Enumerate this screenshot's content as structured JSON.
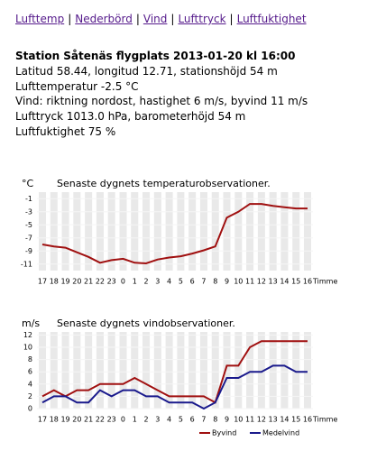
{
  "nav": {
    "links": [
      "Lufttemp",
      "Nederbörd",
      "Vind",
      "Lufttryck",
      "Luftfuktighet"
    ],
    "separator": "|"
  },
  "station": {
    "title": "Station Såtenäs flygplats 2013-01-20 kl 16:00",
    "lines": [
      "Latitud 58.44,  longitud 12.71,  stationshöjd 54 m",
      "Lufttemperatur -2.5 °C",
      "Vind:  riktning nordost,  hastighet 6 m/s,  byvind 11 m/s",
      "Lufttryck 1013.0 hPa,  barometerhöjd 54 m",
      "Luftfuktighet 75 %"
    ]
  },
  "chart_data": [
    {
      "type": "line",
      "title": "Senaste dygnets temperaturobservationer.",
      "y_label": "°C",
      "x_label": "Timme",
      "categories": [
        "17",
        "18",
        "19",
        "20",
        "21",
        "22",
        "23",
        "0",
        "1",
        "2",
        "3",
        "4",
        "5",
        "6",
        "7",
        "8",
        "9",
        "10",
        "11",
        "12",
        "13",
        "14",
        "15",
        "16"
      ],
      "series": [
        {
          "color": "#a01010",
          "values": [
            -8,
            -8.3,
            -8.5,
            -9.2,
            -9.9,
            -10.8,
            -10.4,
            -10.2,
            -10.8,
            -10.9,
            -10.3,
            -10,
            -9.8,
            -9.4,
            -8.9,
            -8.3,
            -3.9,
            -3,
            -1.8,
            -1.8,
            -2.1,
            -2.3,
            -2.5,
            -2.5
          ]
        }
      ],
      "ylim": [
        -12,
        0
      ],
      "yticks": [
        -1,
        -3,
        -5,
        -7,
        -9,
        -11
      ],
      "grid": true
    },
    {
      "type": "line",
      "title": "Senaste dygnets vindobservationer.",
      "y_label": "m/s",
      "x_label": "Timme",
      "categories": [
        "17",
        "18",
        "19",
        "20",
        "21",
        "22",
        "23",
        "0",
        "1",
        "2",
        "3",
        "4",
        "5",
        "6",
        "7",
        "8",
        "9",
        "10",
        "11",
        "12",
        "13",
        "14",
        "15",
        "16"
      ],
      "series": [
        {
          "name": "Byvind",
          "color": "#a01010",
          "values": [
            2,
            3,
            2,
            3,
            3,
            4,
            4,
            4,
            5,
            4,
            3,
            2,
            2,
            2,
            2,
            1,
            7,
            7,
            10,
            11,
            11,
            11,
            11,
            11
          ]
        },
        {
          "name": "Medelvind",
          "color": "#1a1a8c",
          "values": [
            1,
            2,
            2,
            1,
            1,
            3,
            2,
            3,
            3,
            2,
            2,
            1,
            1,
            1,
            0,
            1,
            5,
            5,
            6,
            6,
            7,
            7,
            6,
            6
          ]
        }
      ],
      "ylim": [
        0,
        12.5
      ],
      "yticks": [
        0,
        2,
        4,
        6,
        8,
        10,
        12
      ],
      "grid": true,
      "legend": "bottom-right"
    }
  ]
}
